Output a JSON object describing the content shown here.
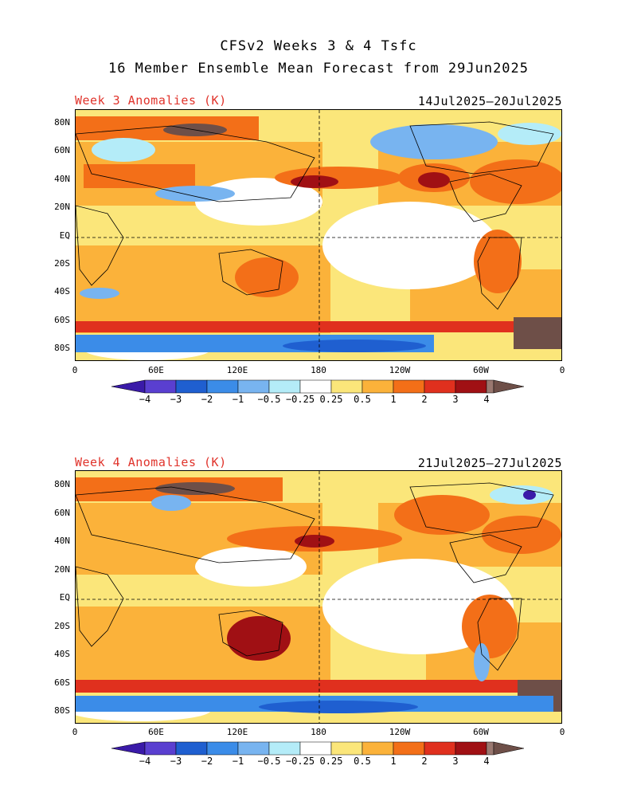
{
  "header": {
    "title_line1": "CFSv2 Weeks 3 & 4 Tsfc",
    "title_line2": "16 Member Ensemble Mean Forecast from 29Jun2025"
  },
  "panels": [
    {
      "label": "Week 3 Anomalies (K)",
      "dates": "14Jul2025–20Jul2025"
    },
    {
      "label": "Week 4 Anomalies (K)",
      "dates": "21Jul2025–27Jul2025"
    }
  ],
  "axes": {
    "lat_labels": [
      "80N",
      "60N",
      "40N",
      "20N",
      "EQ",
      "20S",
      "40S",
      "60S",
      "80S"
    ],
    "lon_labels": [
      "0",
      "60E",
      "120E",
      "180",
      "120W",
      "60W",
      "0"
    ]
  },
  "colorbar": {
    "labels": [
      "−4",
      "−3",
      "−2",
      "−1",
      "−0.5",
      "−0.25",
      "0.25",
      "0.5",
      "1",
      "2",
      "3",
      "4"
    ],
    "colors": [
      "#3a1aa8",
      "#5a3fd0",
      "#1f5fd0",
      "#3b8ce8",
      "#78b4f0",
      "#b4ecf8",
      "#ffffff",
      "#fbe67a",
      "#fbb23a",
      "#f36f18",
      "#e0301e",
      "#a01014",
      "#9a7870",
      "#6e4f48"
    ]
  }
}
